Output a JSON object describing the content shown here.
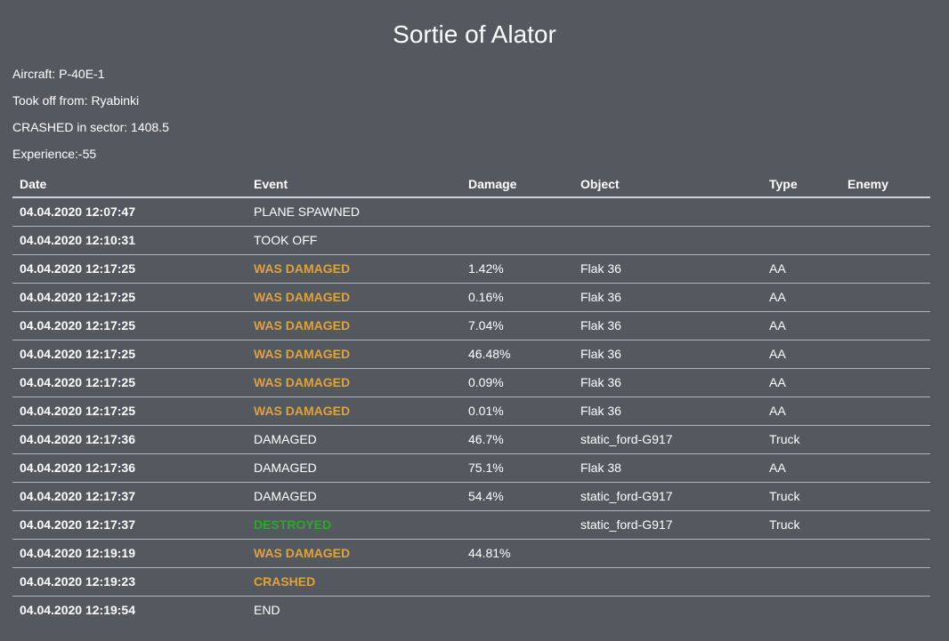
{
  "page": {
    "title": "Sortie of Alator",
    "info": [
      "Aircraft: P-40E-1",
      "Took off from: Ryabinki",
      "CRASHED in sector: 1408.5",
      "Experience:-55"
    ]
  },
  "colors": {
    "background": "#545960",
    "text": "#ffffff",
    "warning_event": "#dfa23c",
    "success_event": "#2fa52f"
  },
  "table": {
    "columns": [
      "Date",
      "Event",
      "Damage",
      "Object",
      "Type",
      "Enemy"
    ],
    "rows": [
      {
        "date": "04.04.2020 12:07:47",
        "event": "PLANE SPAWNED",
        "damage": "",
        "object": "",
        "type": "",
        "enemy": "",
        "style": "normal"
      },
      {
        "date": "04.04.2020 12:10:31",
        "event": "TOOK OFF",
        "damage": "",
        "object": "",
        "type": "",
        "enemy": "",
        "style": "normal"
      },
      {
        "date": "04.04.2020 12:17:25",
        "event": "WAS DAMAGED",
        "damage": "1.42%",
        "object": "Flak 36",
        "type": "AA",
        "enemy": "",
        "style": "warning"
      },
      {
        "date": "04.04.2020 12:17:25",
        "event": "WAS DAMAGED",
        "damage": "0.16%",
        "object": "Flak 36",
        "type": "AA",
        "enemy": "",
        "style": "warning"
      },
      {
        "date": "04.04.2020 12:17:25",
        "event": "WAS DAMAGED",
        "damage": "7.04%",
        "object": "Flak 36",
        "type": "AA",
        "enemy": "",
        "style": "warning"
      },
      {
        "date": "04.04.2020 12:17:25",
        "event": "WAS DAMAGED",
        "damage": "46.48%",
        "object": "Flak 36",
        "type": "AA",
        "enemy": "",
        "style": "warning"
      },
      {
        "date": "04.04.2020 12:17:25",
        "event": "WAS DAMAGED",
        "damage": "0.09%",
        "object": "Flak 36",
        "type": "AA",
        "enemy": "",
        "style": "warning"
      },
      {
        "date": "04.04.2020 12:17:25",
        "event": "WAS DAMAGED",
        "damage": "0.01%",
        "object": "Flak 36",
        "type": "AA",
        "enemy": "",
        "style": "warning"
      },
      {
        "date": "04.04.2020 12:17:36",
        "event": "DAMAGED",
        "damage": "46.7%",
        "object": "static_ford-G917",
        "type": "Truck",
        "enemy": "",
        "style": "normal"
      },
      {
        "date": "04.04.2020 12:17:36",
        "event": "DAMAGED",
        "damage": "75.1%",
        "object": "Flak 38",
        "type": "AA",
        "enemy": "",
        "style": "normal"
      },
      {
        "date": "04.04.2020 12:17:37",
        "event": "DAMAGED",
        "damage": "54.4%",
        "object": "static_ford-G917",
        "type": "Truck",
        "enemy": "",
        "style": "normal"
      },
      {
        "date": "04.04.2020 12:17:37",
        "event": "DESTROYED",
        "damage": "",
        "object": "static_ford-G917",
        "type": "Truck",
        "enemy": "",
        "style": "success"
      },
      {
        "date": "04.04.2020 12:19:19",
        "event": "WAS DAMAGED",
        "damage": "44.81%",
        "object": "",
        "type": "",
        "enemy": "",
        "style": "warning"
      },
      {
        "date": "04.04.2020 12:19:23",
        "event": "CRASHED",
        "damage": "",
        "object": "",
        "type": "",
        "enemy": "",
        "style": "warning"
      },
      {
        "date": "04.04.2020 12:19:54",
        "event": "END",
        "damage": "",
        "object": "",
        "type": "",
        "enemy": "",
        "style": "normal"
      }
    ]
  }
}
